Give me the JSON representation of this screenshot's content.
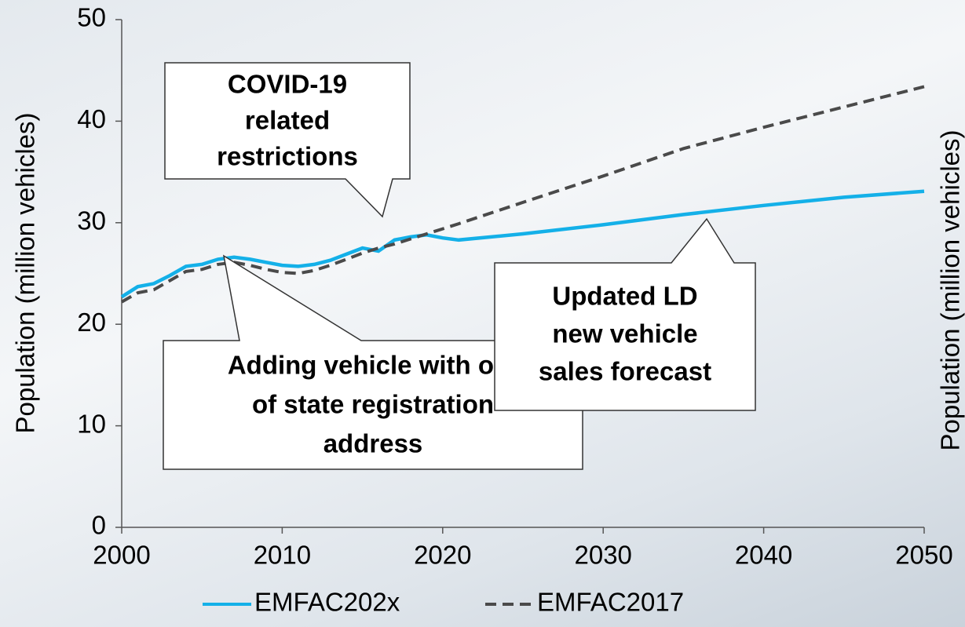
{
  "chart_data": {
    "type": "line",
    "ylabel": "Population (million vehicles)",
    "y2label": "Population (million vehicles)",
    "x": [
      2000,
      2001,
      2002,
      2003,
      2004,
      2005,
      2006,
      2007,
      2008,
      2009,
      2010,
      2011,
      2012,
      2013,
      2014,
      2015,
      2016,
      2017,
      2018,
      2019,
      2020,
      2021,
      2025,
      2030,
      2035,
      2040,
      2045,
      2050
    ],
    "series": [
      {
        "name": "EMFAC202x",
        "color": "#14b0e8",
        "dash": false,
        "values": [
          22.7,
          23.7,
          24.0,
          24.8,
          25.7,
          25.9,
          26.4,
          26.6,
          26.4,
          26.1,
          25.8,
          25.7,
          25.9,
          26.3,
          26.9,
          27.5,
          27.2,
          28.3,
          28.6,
          28.8,
          28.5,
          28.3,
          28.9,
          29.8,
          30.8,
          31.7,
          32.5,
          33.1
        ]
      },
      {
        "name": "EMFAC2017",
        "color": "#4a4a4a",
        "dash": true,
        "values": [
          22.2,
          23.1,
          23.4,
          24.3,
          25.2,
          25.4,
          25.9,
          26.1,
          25.8,
          25.4,
          25.1,
          25.0,
          25.3,
          25.8,
          26.4,
          27.0,
          27.5,
          27.9,
          28.4,
          28.9,
          29.4,
          29.9,
          32.0,
          34.6,
          37.3,
          39.4,
          41.4,
          43.4
        ]
      }
    ],
    "xlim": [
      2000,
      2050
    ],
    "xticks": [
      2000,
      2010,
      2020,
      2030,
      2040,
      2050
    ],
    "ylim": [
      0,
      50
    ],
    "yticks": [
      0,
      10,
      20,
      30,
      40,
      50
    ],
    "annotations": [
      {
        "lines": [
          "COVID-19",
          "related",
          "restrictions"
        ]
      },
      {
        "lines": [
          "Adding vehicle with out",
          "of state registration",
          "address"
        ]
      },
      {
        "lines": [
          "Updated LD",
          "new vehicle",
          "sales forecast"
        ]
      }
    ]
  }
}
